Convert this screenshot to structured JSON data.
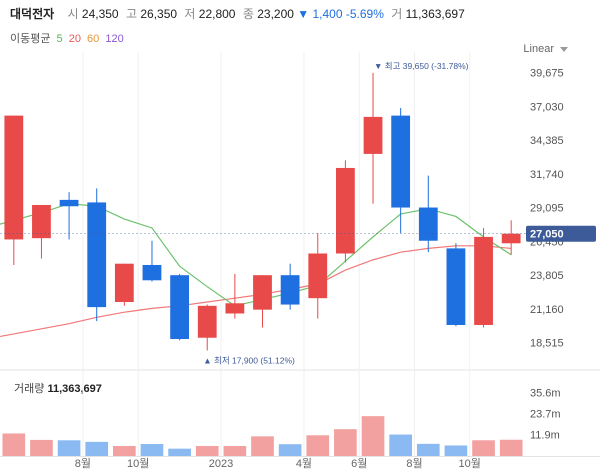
{
  "header": {
    "name": "대덕전자",
    "open_label": "시",
    "open": "24,350",
    "high_label": "고",
    "high": "26,350",
    "low_label": "저",
    "low": "22,800",
    "close_label": "종",
    "close": "23,200",
    "change": "▼ 1,400 -5.69%",
    "volume_label": "거",
    "volume": "11,363,697"
  },
  "ma_legend": {
    "title": "이동평균",
    "items": [
      "5",
      "20",
      "60",
      "120"
    ]
  },
  "scale_mode": "Linear",
  "volume_header": {
    "label": "거래량",
    "value": "11,363,697"
  },
  "colors": {
    "up": "#e84a4a",
    "down": "#1e6fe0",
    "ma5": "#6cc26c",
    "ma20": "#f07878",
    "price_tag": "#3d5a99",
    "vol_up": "#f2a0a0",
    "vol_down": "#8bbaf2"
  },
  "chart_data": {
    "type": "candlestick",
    "title": "대덕전자",
    "price_axis": {
      "ticks": [
        "39,675",
        "37,030",
        "34,385",
        "31,740",
        "29,095",
        "26,450",
        "23,805",
        "21,160",
        "18,515"
      ],
      "ylim": [
        17000,
        40500
      ]
    },
    "x_ticks": [
      {
        "label": "8월",
        "after": 2
      },
      {
        "label": "10월",
        "after": 4
      },
      {
        "label": "2023",
        "after": 7
      },
      {
        "label": "4월",
        "after": 10
      },
      {
        "label": "6월",
        "after": 12
      },
      {
        "label": "8월",
        "after": 14
      },
      {
        "label": "10월",
        "after": 16
      }
    ],
    "candles": [
      {
        "o": 26600,
        "h": 36300,
        "l": 24600,
        "c": 36300
      },
      {
        "o": 26700,
        "h": 29300,
        "l": 25100,
        "c": 29300
      },
      {
        "o": 29700,
        "h": 30300,
        "l": 26600,
        "c": 29200
      },
      {
        "o": 29500,
        "h": 30600,
        "l": 20200,
        "c": 21300
      },
      {
        "o": 21700,
        "h": 24700,
        "l": 21400,
        "c": 24700
      },
      {
        "o": 24600,
        "h": 26500,
        "l": 23300,
        "c": 23400
      },
      {
        "o": 23800,
        "h": 23900,
        "l": 18700,
        "c": 18800
      },
      {
        "o": 18900,
        "h": 21500,
        "l": 17900,
        "c": 21400
      },
      {
        "o": 20800,
        "h": 23900,
        "l": 20400,
        "c": 21600
      },
      {
        "o": 21100,
        "h": 23800,
        "l": 19700,
        "c": 23800
      },
      {
        "o": 23800,
        "h": 24700,
        "l": 21100,
        "c": 21500
      },
      {
        "o": 22000,
        "h": 27100,
        "l": 20400,
        "c": 25500
      },
      {
        "o": 25500,
        "h": 32800,
        "l": 24800,
        "c": 32200
      },
      {
        "o": 33300,
        "h": 39650,
        "l": 29400,
        "c": 36200
      },
      {
        "o": 36300,
        "h": 36900,
        "l": 27100,
        "c": 29100
      },
      {
        "o": 29100,
        "h": 31600,
        "l": 25600,
        "c": 26500
      },
      {
        "o": 25900,
        "h": 26300,
        "l": 19800,
        "c": 19900
      },
      {
        "o": 19900,
        "h": 27500,
        "l": 19700,
        "c": 26800
      },
      {
        "o": 26300,
        "h": 28100,
        "l": 25400,
        "c": 27050
      }
    ],
    "ma5": [
      28100,
      28700,
      29400,
      29200,
      28200,
      27500,
      24500,
      22900,
      21400,
      21900,
      22400,
      23000,
      24900,
      26800,
      28600,
      29000,
      28400,
      26800,
      25400
    ],
    "ma20": [
      19200,
      19600,
      20000,
      20500,
      20900,
      21200,
      21400,
      21700,
      22000,
      22300,
      22700,
      23100,
      24200,
      25000,
      25600,
      25900,
      26100,
      26100,
      25900
    ],
    "volume": {
      "ticks": [
        "35.6m",
        "23.7m",
        "11.9m"
      ],
      "ylim": [
        0,
        47000000
      ],
      "values": [
        12600000,
        9000000,
        8800000,
        7900000,
        5600000,
        6700000,
        4100000,
        5600000,
        5600000,
        11000000,
        6600000,
        11600000,
        15000000,
        22300000,
        12000000,
        6800000,
        5900000,
        8800000,
        9100000
      ]
    },
    "annotations": {
      "max": {
        "label": "▼ 최고 39,650 (-31.78%)",
        "value": 39650,
        "index": 13
      },
      "min": {
        "label": "▲ 최저 17,900 (51.12%)",
        "value": 17900,
        "index": 7
      }
    },
    "last_price": "27,050"
  }
}
